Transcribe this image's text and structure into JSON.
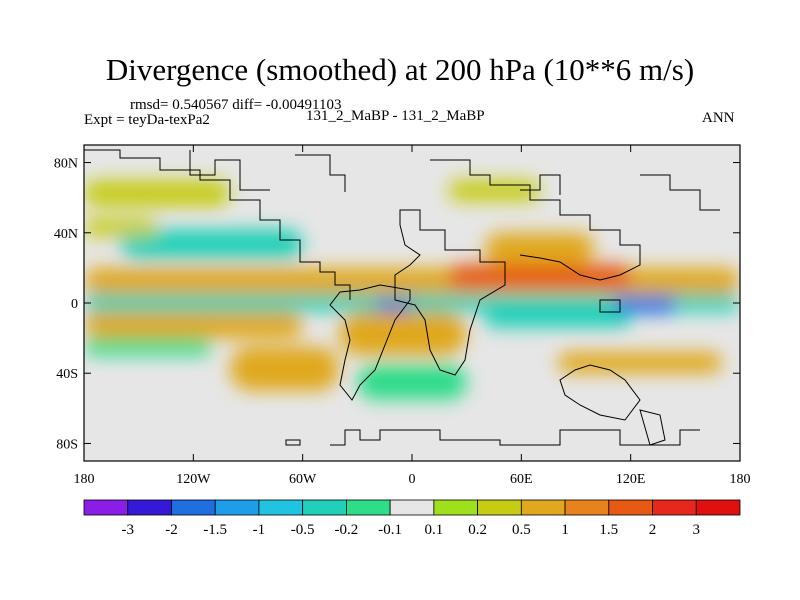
{
  "chart_data": {
    "type": "heatmap",
    "title": "Divergence (smoothed) at 200 hPa (10**6 m/s)",
    "stats_text": "rmsd= 0.540567 diff= -0.00491103",
    "left_label": "Expt = teyDa-texPa2",
    "center_label": "131_2_MaBP - 131_2_MaBP",
    "right_label": "ANN",
    "x_ticks": [
      {
        "value": -180,
        "label": "180"
      },
      {
        "value": -120,
        "label": "120W"
      },
      {
        "value": -60,
        "label": "60W"
      },
      {
        "value": 0,
        "label": "0"
      },
      {
        "value": 60,
        "label": "60E"
      },
      {
        "value": 120,
        "label": "120E"
      },
      {
        "value": 180,
        "label": "180"
      }
    ],
    "y_ticks": [
      {
        "value": 80,
        "label": "80N"
      },
      {
        "value": 40,
        "label": "40N"
      },
      {
        "value": 0,
        "label": "0"
      },
      {
        "value": -40,
        "label": "40S"
      },
      {
        "value": -80,
        "label": "80S"
      }
    ],
    "xlim": [
      -180,
      180
    ],
    "ylim": [
      -90,
      90
    ],
    "colorbar": {
      "labels": [
        "-3",
        "-2",
        "-1.5",
        "-1",
        "-0.5",
        "-0.2",
        "-0.1",
        "0.1",
        "0.2",
        "0.5",
        "1",
        "1.5",
        "2",
        "3"
      ],
      "colors": [
        "#8b1ee6",
        "#3419d6",
        "#1f6fe0",
        "#1e9ee8",
        "#22c3e0",
        "#20d0b8",
        "#2fdc8a",
        "#e6e6e6",
        "#9ee01c",
        "#c6cc14",
        "#e0a81e",
        "#e8821c",
        "#e65a14",
        "#e6281c",
        "#e01010"
      ]
    },
    "bands": [
      {
        "lon": [
          -180,
          -100
        ],
        "lat": [
          55,
          70
        ],
        "value": 0.2
      },
      {
        "lon": [
          -160,
          -60
        ],
        "lat": [
          25,
          42
        ],
        "value": -0.5
      },
      {
        "lon": [
          -180,
          -140
        ],
        "lat": [
          38,
          48
        ],
        "value": 0.2
      },
      {
        "lon": [
          -180,
          180
        ],
        "lat": [
          5,
          20
        ],
        "value": 0.5
      },
      {
        "lon": [
          20,
          120
        ],
        "lat": [
          8,
          22
        ],
        "value": 1.5
      },
      {
        "lon": [
          40,
          100
        ],
        "lat": [
          22,
          40
        ],
        "value": 0.5
      },
      {
        "lon": [
          -180,
          180
        ],
        "lat": [
          -5,
          5
        ],
        "value": -0.5
      },
      {
        "lon": [
          -20,
          0
        ],
        "lat": [
          -6,
          2
        ],
        "value": -2
      },
      {
        "lon": [
          110,
          145
        ],
        "lat": [
          -6,
          4
        ],
        "value": -2
      },
      {
        "lon": [
          -180,
          -60
        ],
        "lat": [
          -20,
          -5
        ],
        "value": 0.5
      },
      {
        "lon": [
          -40,
          30
        ],
        "lat": [
          -30,
          -5
        ],
        "value": 0.5
      },
      {
        "lon": [
          40,
          120
        ],
        "lat": [
          -14,
          -5
        ],
        "value": -0.5
      },
      {
        "lon": [
          -180,
          -110
        ],
        "lat": [
          -30,
          -20
        ],
        "value": -0.2
      },
      {
        "lon": [
          -100,
          -40
        ],
        "lat": [
          -50,
          -25
        ],
        "value": 0.5
      },
      {
        "lon": [
          -30,
          30
        ],
        "lat": [
          -55,
          -35
        ],
        "value": -0.2
      },
      {
        "lon": [
          80,
          170
        ],
        "lat": [
          -40,
          -28
        ],
        "value": 0.5
      },
      {
        "lon": [
          20,
          70
        ],
        "lat": [
          58,
          70
        ],
        "value": 0.2
      }
    ]
  }
}
